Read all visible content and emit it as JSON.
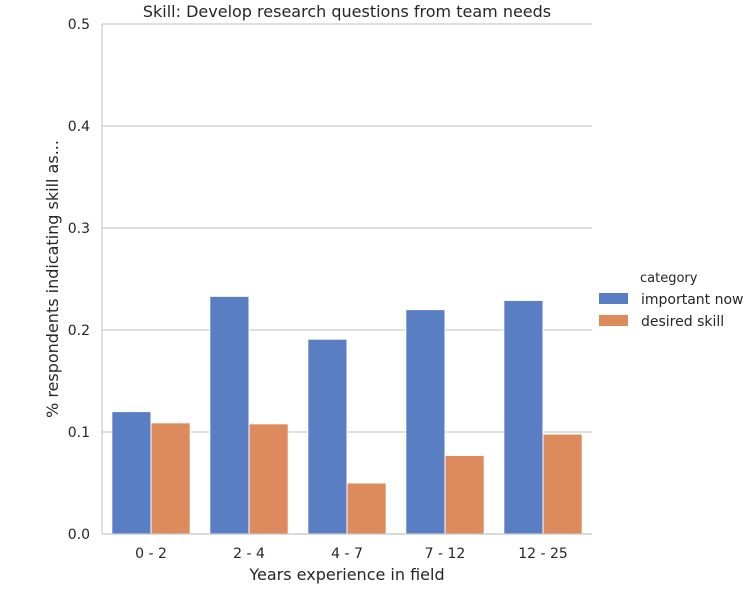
{
  "chart_data": {
    "type": "bar",
    "title": "Skill: Develop research questions from team needs",
    "xlabel": "Years experience in field",
    "ylabel": "% respondents indicating skill as...",
    "categories": [
      "0 - 2",
      "2 - 4",
      "4 - 7",
      "7 - 12",
      "12 - 25"
    ],
    "ylim": [
      0,
      0.5
    ],
    "yticks": [
      "0.0",
      "0.1",
      "0.2",
      "0.3",
      "0.4",
      "0.5"
    ],
    "grid": "horizontal",
    "legend": {
      "title": "category",
      "placement": "right"
    },
    "series": [
      {
        "name": "important now",
        "color": "#5a7ec4",
        "values": [
          0.12,
          0.233,
          0.191,
          0.22,
          0.229
        ]
      },
      {
        "name": "desired skill",
        "color": "#dd8a5c",
        "values": [
          0.109,
          0.108,
          0.05,
          0.077,
          0.098
        ]
      }
    ]
  }
}
